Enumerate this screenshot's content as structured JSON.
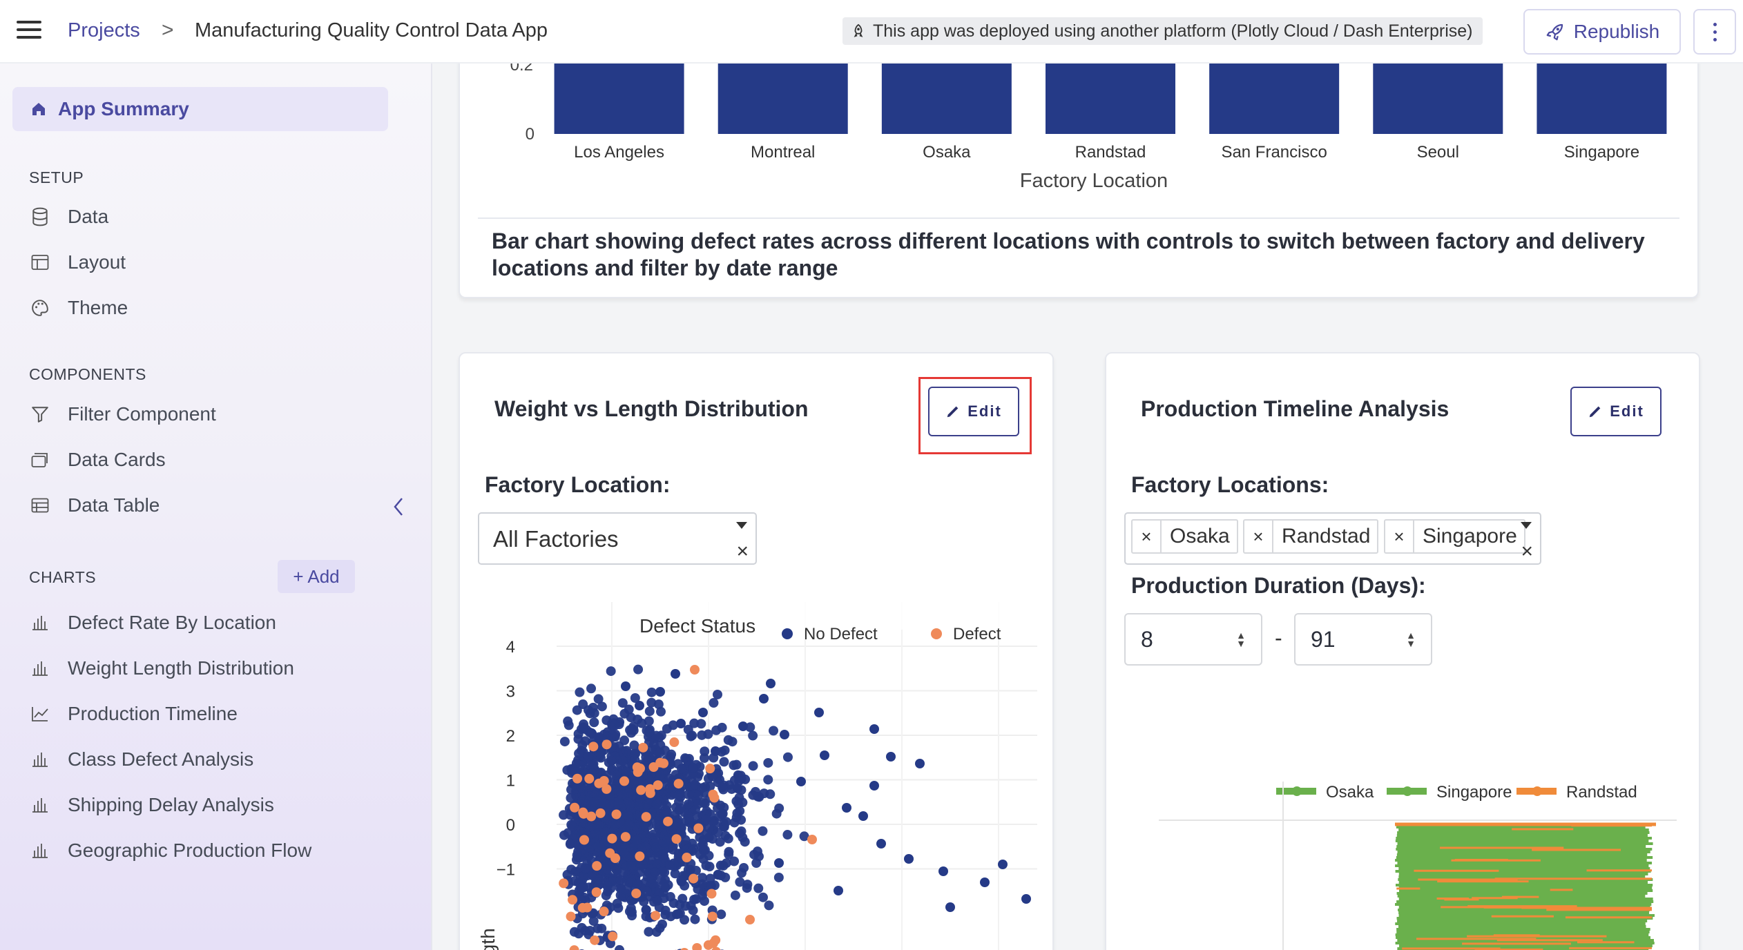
{
  "header": {
    "breadcrumb_projects": "Projects",
    "breadcrumb_sep": ">",
    "app_title": "Manufacturing Quality Control Data App",
    "deploy_note": "This app was deployed using another platform (Plotly Cloud / Dash Enterprise)",
    "republish_label": "Republish"
  },
  "sidebar": {
    "summary_label": "App Summary",
    "setup_title": "SETUP",
    "setup_items": [
      "Data",
      "Layout",
      "Theme"
    ],
    "components_title": "COMPONENTS",
    "component_items": [
      "Filter Component",
      "Data Cards",
      "Data Table"
    ],
    "charts_title": "CHARTS",
    "add_label": "+ Add",
    "chart_items": [
      "Defect Rate By Location",
      "Weight Length Distribution",
      "Production Timeline",
      "Class Defect Analysis",
      "Shipping Delay Analysis",
      "Geographic Production Flow"
    ]
  },
  "top_card": {
    "y_tick_zero": "0",
    "y_tick_partial": "0.2",
    "xlabel": "Factory Location",
    "description": "Bar chart showing defect rates across different locations with controls to switch between factory and delivery locations and filter by date range"
  },
  "scatter_card": {
    "title": "Weight vs Length Distribution",
    "edit_label": "Edit",
    "filter_label": "Factory Location:",
    "filter_value": "All Factories",
    "clear_symbol": "×",
    "legend_title": "Defect Status",
    "ylabel": "Length"
  },
  "timeline_card": {
    "title": "Production Timeline Analysis",
    "edit_label": "Edit",
    "locations_label": "Factory Locations:",
    "selected_locations": [
      "Osaka",
      "Randstad",
      "Singapore"
    ],
    "clear_symbol": "×",
    "duration_label": "Production Duration (Days):",
    "duration_min": "8",
    "duration_sep": "-",
    "duration_max": "91"
  },
  "chart_data": [
    {
      "type": "bar",
      "categories": [
        "Los Angeles",
        "Montreal",
        "Osaka",
        "Randstad",
        "San Francisco",
        "Seoul",
        "Singapore"
      ],
      "xlabel": "Factory Location",
      "bar_color": "#253a87"
    },
    {
      "type": "scatter",
      "ylabel": "Length",
      "legend_title": "Defect Status",
      "yticks": [
        4,
        3,
        2,
        1,
        0,
        -1
      ],
      "ytick_labels": [
        "4",
        "3",
        "2",
        "1",
        "0",
        "−1"
      ],
      "series": [
        {
          "name": "No Defect",
          "color": "#253a87"
        },
        {
          "name": "Defect",
          "color": "#ef8a5a"
        }
      ]
    },
    {
      "type": "line",
      "series": [
        {
          "name": "Osaka",
          "color": "#6ab04c"
        },
        {
          "name": "Singapore",
          "color": "#6ab04c"
        },
        {
          "name": "Randstad",
          "color": "#f08b3a"
        }
      ]
    }
  ],
  "colors": {
    "accent": "#4a4aa0",
    "highlight": "#e53935"
  }
}
